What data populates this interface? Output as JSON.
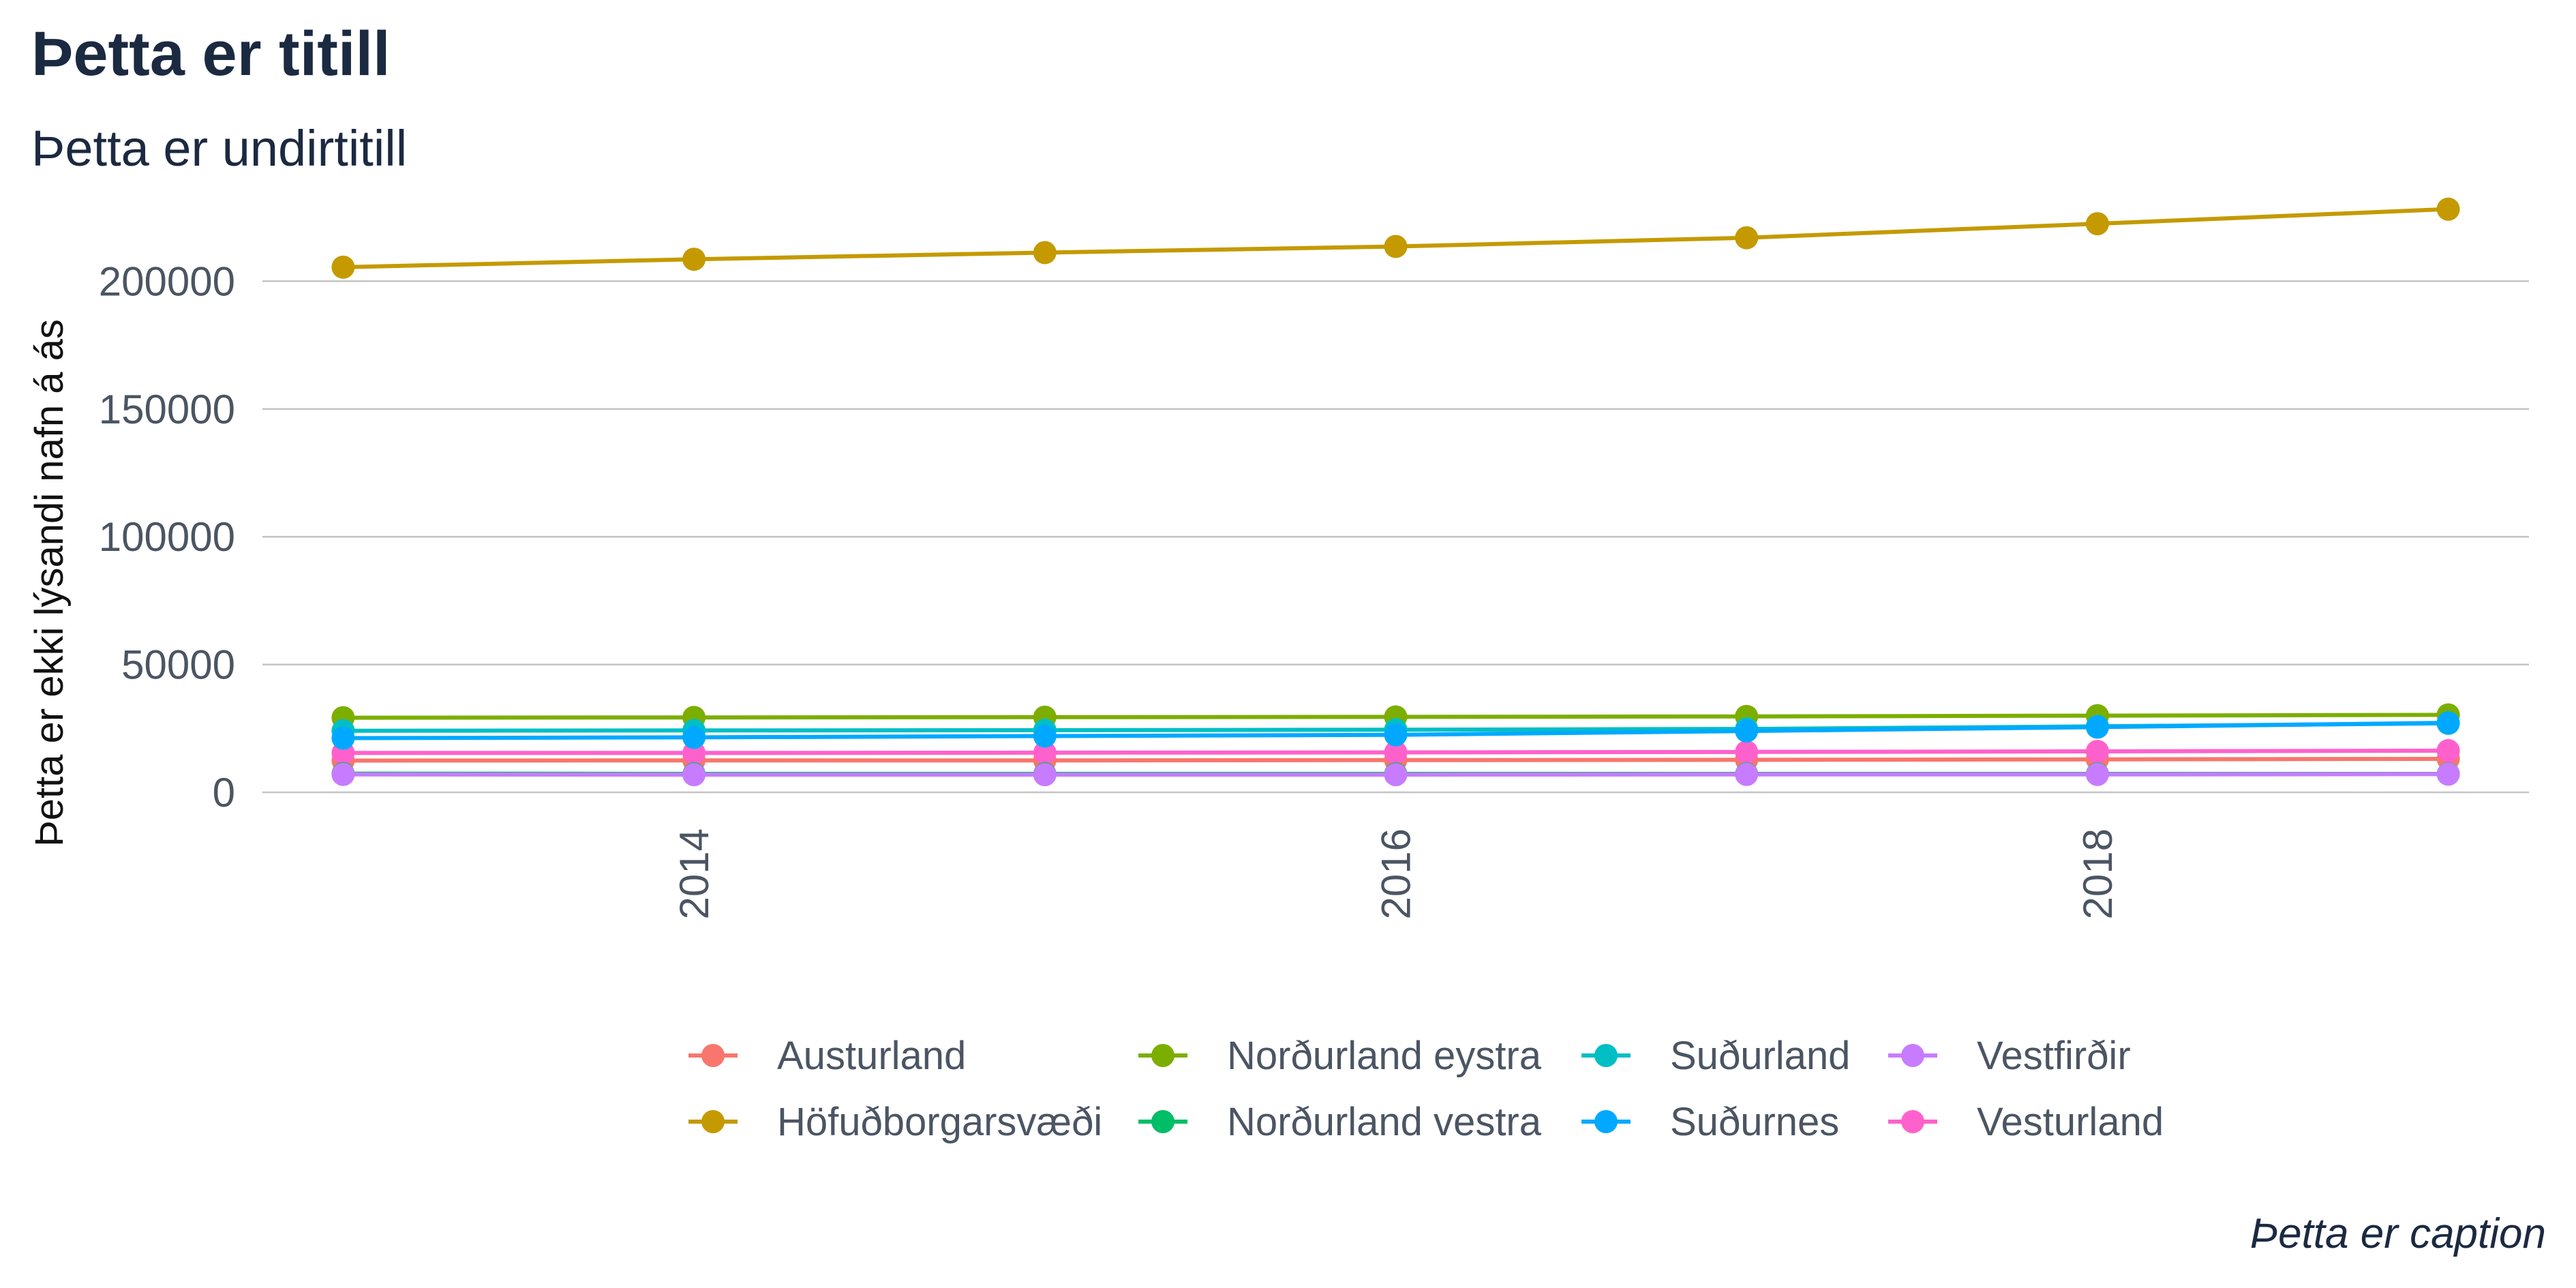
{
  "chart_data": {
    "type": "line",
    "title": "Þetta er titill",
    "subtitle": "Þetta er undirtitill",
    "caption": "Þetta er caption",
    "ylabel": "Þetta er ekki lýsandi nafn á ás",
    "xlabel": "",
    "x": [
      2013,
      2014,
      2015,
      2016,
      2017,
      2018,
      2019
    ],
    "xticks": [
      2014,
      2016,
      2018
    ],
    "xlim": [
      2012.77,
      2019.23
    ],
    "yticks": [
      0,
      50000,
      100000,
      150000,
      200000
    ],
    "ylim": [
      0,
      230000
    ],
    "grid": "horizontal",
    "legend_position": "bottom",
    "series": [
      {
        "name": "Austurland",
        "color": "#F8766D",
        "values": [
          12400,
          12500,
          12500,
          12600,
          12700,
          12900,
          13100
        ]
      },
      {
        "name": "Höfuðborgarsvæði",
        "color": "#C49A00",
        "values": [
          205500,
          208600,
          211200,
          213600,
          217000,
          222500,
          228200
        ]
      },
      {
        "name": "Norðurland eystra",
        "color": "#7CAE00",
        "values": [
          29200,
          29300,
          29400,
          29500,
          29700,
          30000,
          30300
        ]
      },
      {
        "name": "Norðurland vestra",
        "color": "#00BE67",
        "values": [
          7300,
          7200,
          7200,
          7200,
          7200,
          7200,
          7200
        ]
      },
      {
        "name": "Suðurland",
        "color": "#00BFC4",
        "values": [
          24100,
          24200,
          24300,
          24500,
          24800,
          25800,
          27000
        ]
      },
      {
        "name": "Suðurnes",
        "color": "#00A9FF",
        "values": [
          21200,
          21500,
          22000,
          22500,
          24000,
          25500,
          27200
        ]
      },
      {
        "name": "Vestfirðir",
        "color": "#C77CFF",
        "values": [
          7000,
          6900,
          6900,
          6900,
          7000,
          7000,
          7100
        ]
      },
      {
        "name": "Vesturland",
        "color": "#FF61CC",
        "values": [
          15400,
          15400,
          15500,
          15600,
          15800,
          16000,
          16300
        ]
      }
    ]
  }
}
